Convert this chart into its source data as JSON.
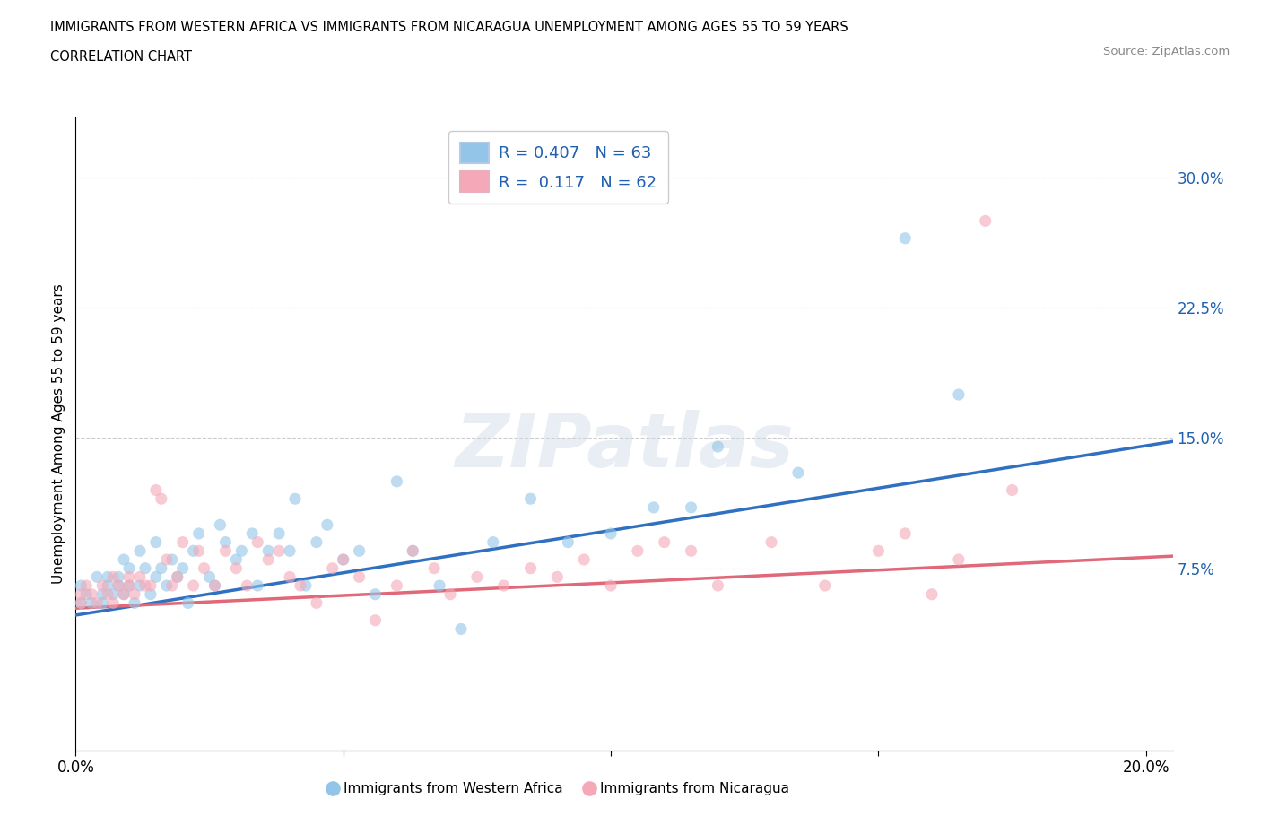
{
  "title_line1": "IMMIGRANTS FROM WESTERN AFRICA VS IMMIGRANTS FROM NICARAGUA UNEMPLOYMENT AMONG AGES 55 TO 59 YEARS",
  "title_line2": "CORRELATION CHART",
  "source": "Source: ZipAtlas.com",
  "ylabel": "Unemployment Among Ages 55 to 59 years",
  "xlim": [
    0.0,
    0.205
  ],
  "ylim": [
    -0.03,
    0.335
  ],
  "xticks": [
    0.0,
    0.05,
    0.1,
    0.15,
    0.2
  ],
  "xtick_labels": [
    "0.0%",
    "",
    "",
    "",
    "20.0%"
  ],
  "ytick_labels": [
    "7.5%",
    "15.0%",
    "22.5%",
    "30.0%"
  ],
  "yticks": [
    0.075,
    0.15,
    0.225,
    0.3
  ],
  "grid_color": "#cccccc",
  "background_color": "#ffffff",
  "blue_color": "#92c5e8",
  "pink_color": "#f4a8b8",
  "blue_line_color": "#3070c0",
  "pink_line_color": "#e06878",
  "stats_text_color": "#2060b0",
  "r_blue": "0.407",
  "n_blue": "63",
  "r_pink": "0.117",
  "n_pink": "62",
  "legend_label_blue": "Immigrants from Western Africa",
  "legend_label_pink": "Immigrants from Nicaragua",
  "watermark": "ZIPatlas",
  "blue_scatter_x": [
    0.001,
    0.001,
    0.002,
    0.003,
    0.004,
    0.005,
    0.005,
    0.006,
    0.006,
    0.007,
    0.008,
    0.008,
    0.009,
    0.009,
    0.01,
    0.01,
    0.011,
    0.012,
    0.012,
    0.013,
    0.014,
    0.015,
    0.015,
    0.016,
    0.017,
    0.018,
    0.019,
    0.02,
    0.021,
    0.022,
    0.023,
    0.025,
    0.026,
    0.027,
    0.028,
    0.03,
    0.031,
    0.033,
    0.034,
    0.036,
    0.038,
    0.04,
    0.041,
    0.043,
    0.045,
    0.047,
    0.05,
    0.053,
    0.056,
    0.06,
    0.063,
    0.068,
    0.072,
    0.078,
    0.085,
    0.092,
    0.1,
    0.108,
    0.115,
    0.12,
    0.135,
    0.155,
    0.165
  ],
  "blue_scatter_y": [
    0.055,
    0.065,
    0.06,
    0.055,
    0.07,
    0.06,
    0.055,
    0.07,
    0.065,
    0.06,
    0.065,
    0.07,
    0.06,
    0.08,
    0.065,
    0.075,
    0.055,
    0.065,
    0.085,
    0.075,
    0.06,
    0.07,
    0.09,
    0.075,
    0.065,
    0.08,
    0.07,
    0.075,
    0.055,
    0.085,
    0.095,
    0.07,
    0.065,
    0.1,
    0.09,
    0.08,
    0.085,
    0.095,
    0.065,
    0.085,
    0.095,
    0.085,
    0.115,
    0.065,
    0.09,
    0.1,
    0.08,
    0.085,
    0.06,
    0.125,
    0.085,
    0.065,
    0.04,
    0.09,
    0.115,
    0.09,
    0.095,
    0.11,
    0.11,
    0.145,
    0.13,
    0.265,
    0.175
  ],
  "pink_scatter_x": [
    0.001,
    0.001,
    0.002,
    0.003,
    0.004,
    0.005,
    0.006,
    0.007,
    0.007,
    0.008,
    0.009,
    0.01,
    0.01,
    0.011,
    0.012,
    0.013,
    0.014,
    0.015,
    0.016,
    0.017,
    0.018,
    0.019,
    0.02,
    0.022,
    0.023,
    0.024,
    0.026,
    0.028,
    0.03,
    0.032,
    0.034,
    0.036,
    0.038,
    0.04,
    0.042,
    0.045,
    0.048,
    0.05,
    0.053,
    0.056,
    0.06,
    0.063,
    0.067,
    0.07,
    0.075,
    0.08,
    0.085,
    0.09,
    0.095,
    0.1,
    0.105,
    0.11,
    0.115,
    0.12,
    0.13,
    0.14,
    0.15,
    0.155,
    0.16,
    0.165,
    0.17,
    0.175
  ],
  "pink_scatter_y": [
    0.06,
    0.055,
    0.065,
    0.06,
    0.055,
    0.065,
    0.06,
    0.055,
    0.07,
    0.065,
    0.06,
    0.065,
    0.07,
    0.06,
    0.07,
    0.065,
    0.065,
    0.12,
    0.115,
    0.08,
    0.065,
    0.07,
    0.09,
    0.065,
    0.085,
    0.075,
    0.065,
    0.085,
    0.075,
    0.065,
    0.09,
    0.08,
    0.085,
    0.07,
    0.065,
    0.055,
    0.075,
    0.08,
    0.07,
    0.045,
    0.065,
    0.085,
    0.075,
    0.06,
    0.07,
    0.065,
    0.075,
    0.07,
    0.08,
    0.065,
    0.085,
    0.09,
    0.085,
    0.065,
    0.09,
    0.065,
    0.085,
    0.095,
    0.06,
    0.08,
    0.275,
    0.12
  ]
}
